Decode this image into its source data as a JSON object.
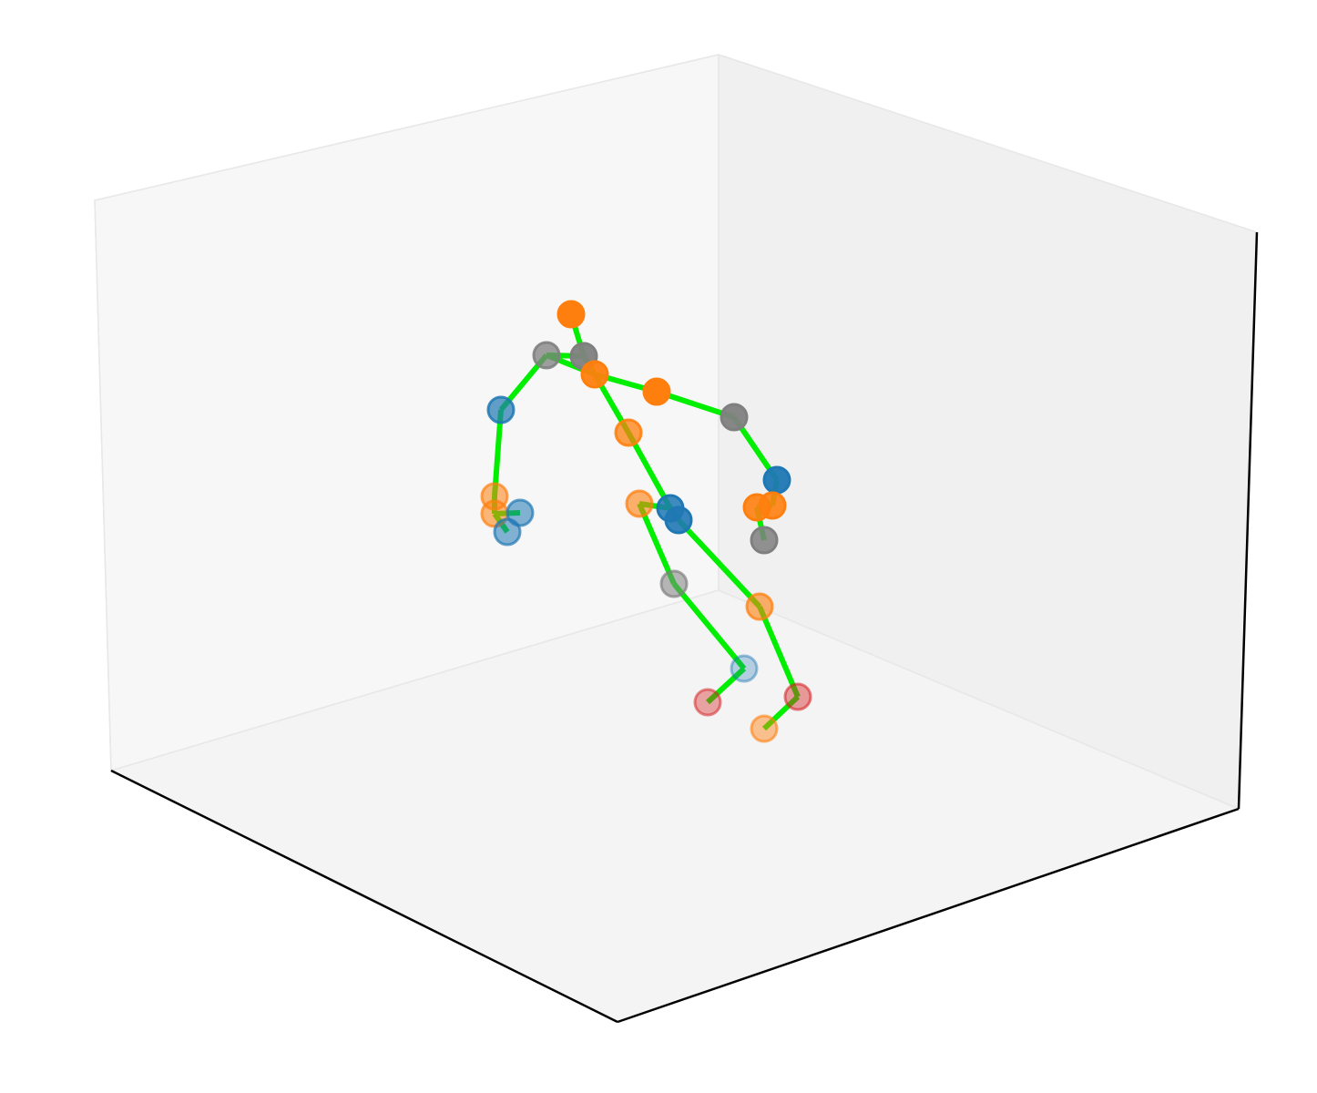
{
  "figure": {
    "kind": "3d-pose-skeleton",
    "projection": "3d-axes",
    "axes_visible": false,
    "tick_labels_visible": false,
    "grid": false,
    "title": ""
  },
  "colors": {
    "background": "#ffffff",
    "pane_back_left": "#f7f7f7",
    "pane_back_right": "#f0f0f0",
    "pane_floor": "#f4f4f4",
    "pane_edge": "#e8e8e8",
    "axis_line": "#000000",
    "bone": "#00ee00",
    "joint_blue": "#1f77b4",
    "joint_orange": "#ff7f0e",
    "joint_gray": "#7f7f7f",
    "joint_red": "#d62728"
  },
  "joints": [
    {
      "id": "head-top",
      "color": "joint_orange",
      "opacity": 1.0
    },
    {
      "id": "neck",
      "color": "joint_gray",
      "opacity": 0.95
    },
    {
      "id": "right-shoulder",
      "color": "joint_gray",
      "opacity": 0.75
    },
    {
      "id": "right-elbow",
      "color": "joint_blue",
      "opacity": 0.7
    },
    {
      "id": "right-wrist",
      "color": "joint_orange",
      "opacity": 0.55
    },
    {
      "id": "right-hand-a",
      "color": "joint_orange",
      "opacity": 0.55
    },
    {
      "id": "right-hand-b",
      "color": "joint_blue",
      "opacity": 0.55
    },
    {
      "id": "right-hand-c",
      "color": "joint_blue",
      "opacity": 0.55
    },
    {
      "id": "thorax",
      "color": "joint_orange",
      "opacity": 0.95
    },
    {
      "id": "left-clavicle",
      "color": "joint_orange",
      "opacity": 1.0
    },
    {
      "id": "left-shoulder",
      "color": "joint_gray",
      "opacity": 0.95
    },
    {
      "id": "left-elbow",
      "color": "joint_blue",
      "opacity": 0.95
    },
    {
      "id": "left-wrist",
      "color": "joint_orange",
      "opacity": 0.9
    },
    {
      "id": "left-hand-a",
      "color": "joint_orange",
      "opacity": 0.9
    },
    {
      "id": "left-hand-b",
      "color": "joint_gray",
      "opacity": 0.85
    },
    {
      "id": "spine",
      "color": "joint_orange",
      "opacity": 0.75
    },
    {
      "id": "pelvis",
      "color": "joint_blue",
      "opacity": 0.85
    },
    {
      "id": "left-hip",
      "color": "joint_blue",
      "opacity": 0.9
    },
    {
      "id": "right-hip",
      "color": "joint_orange",
      "opacity": 0.6
    },
    {
      "id": "right-knee",
      "color": "joint_gray",
      "opacity": 0.55
    },
    {
      "id": "right-ankle",
      "color": "joint_blue",
      "opacity": 0.3
    },
    {
      "id": "right-toe",
      "color": "joint_red",
      "opacity": 0.4
    },
    {
      "id": "left-knee",
      "color": "joint_orange",
      "opacity": 0.6
    },
    {
      "id": "left-ankle",
      "color": "joint_red",
      "opacity": 0.45
    },
    {
      "id": "left-toe",
      "color": "joint_orange",
      "opacity": 0.45
    }
  ],
  "bones": [
    [
      "head-top",
      "neck"
    ],
    [
      "neck",
      "right-shoulder"
    ],
    [
      "right-shoulder",
      "right-elbow"
    ],
    [
      "right-elbow",
      "right-wrist"
    ],
    [
      "right-wrist",
      "right-hand-a"
    ],
    [
      "right-hand-a",
      "right-hand-b"
    ],
    [
      "right-hand-a",
      "right-hand-c"
    ],
    [
      "right-shoulder",
      "thorax"
    ],
    [
      "neck",
      "thorax"
    ],
    [
      "thorax",
      "left-clavicle"
    ],
    [
      "left-clavicle",
      "left-shoulder"
    ],
    [
      "left-shoulder",
      "left-elbow"
    ],
    [
      "left-elbow",
      "left-wrist"
    ],
    [
      "left-wrist",
      "left-hand-a"
    ],
    [
      "left-hand-a",
      "left-hand-b"
    ],
    [
      "thorax",
      "spine"
    ],
    [
      "spine",
      "pelvis"
    ],
    [
      "pelvis",
      "left-hip"
    ],
    [
      "pelvis",
      "right-hip"
    ],
    [
      "right-hip",
      "right-knee"
    ],
    [
      "right-knee",
      "right-ankle"
    ],
    [
      "right-ankle",
      "right-toe"
    ],
    [
      "left-hip",
      "left-knee"
    ],
    [
      "left-knee",
      "left-ankle"
    ],
    [
      "left-ankle",
      "left-toe"
    ]
  ]
}
